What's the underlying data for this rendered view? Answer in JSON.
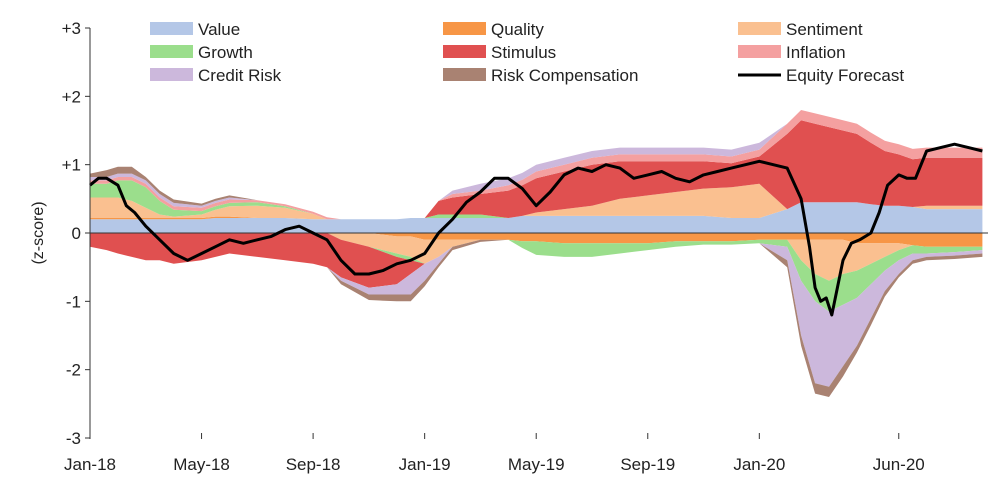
{
  "chart_data": {
    "type": "area",
    "title": "",
    "xlabel": "",
    "ylabel": "(z-score)",
    "ylim": [
      -3,
      3
    ],
    "yticks": [
      3,
      2,
      1,
      0,
      -1,
      -2,
      -3
    ],
    "ytick_labels": [
      "+3",
      "+2",
      "+1",
      "0",
      "-1",
      "-2",
      "-3"
    ],
    "x_tick_labels": [
      "Jan-18",
      "May-18",
      "Sep-18",
      "Jan-19",
      "May-19",
      "Sep-19",
      "Jan-20",
      "Jun-20"
    ],
    "x_tick_months": [
      0,
      4,
      8,
      12,
      16,
      20,
      24,
      29
    ],
    "x_range_months": [
      0,
      32.2
    ],
    "legend_position": "top",
    "x": [
      0,
      0.6,
      1.0,
      1.5,
      2.0,
      2.5,
      3.0,
      4.0,
      4.5,
      5.0,
      6.0,
      7.0,
      8.0,
      8.5,
      9.0,
      10.0,
      11.0,
      11.5,
      12.0,
      12.5,
      13.0,
      14.0,
      15.0,
      15.5,
      16.0,
      17.0,
      18.0,
      19.0,
      20.0,
      21.0,
      22.0,
      23.0,
      24.0,
      25.0,
      25.5,
      26.0,
      26.5,
      27.0,
      27.5,
      28.0,
      28.5,
      29.0,
      29.5,
      30.0,
      31.0,
      32.0
    ],
    "series": [
      {
        "name": "Value",
        "color": "#b4c7e7",
        "values": [
          0.2,
          0.2,
          0.2,
          0.2,
          0.2,
          0.2,
          0.2,
          0.2,
          0.22,
          0.22,
          0.22,
          0.22,
          0.2,
          0.2,
          0.2,
          0.2,
          0.2,
          0.22,
          0.22,
          0.22,
          0.22,
          0.22,
          0.22,
          0.25,
          0.25,
          0.25,
          0.25,
          0.25,
          0.25,
          0.25,
          0.25,
          0.22,
          0.22,
          0.35,
          0.45,
          0.45,
          0.45,
          0.45,
          0.45,
          0.42,
          0.4,
          0.4,
          0.38,
          0.35,
          0.35,
          0.35
        ]
      },
      {
        "name": "Quality",
        "color": "#f79646",
        "values": [
          0.02,
          0.02,
          0.02,
          0.02,
          0.02,
          0.02,
          0.02,
          0.02,
          0.02,
          0.02,
          0.0,
          0.0,
          0.0,
          0.0,
          0.0,
          0.0,
          -0.05,
          -0.05,
          -0.1,
          -0.1,
          -0.1,
          -0.1,
          -0.1,
          -0.12,
          -0.12,
          -0.15,
          -0.15,
          -0.15,
          -0.15,
          -0.12,
          -0.12,
          -0.12,
          -0.1,
          -0.1,
          -0.1,
          -0.1,
          -0.1,
          -0.1,
          -0.15,
          -0.15,
          -0.15,
          -0.15,
          -0.18,
          -0.2,
          -0.2,
          -0.2
        ]
      },
      {
        "name": "Sentiment",
        "color": "#fac090",
        "values": [
          0.3,
          0.3,
          0.3,
          0.25,
          0.15,
          0.05,
          0.02,
          0.05,
          0.1,
          0.15,
          0.18,
          0.15,
          0.08,
          0.0,
          -0.1,
          -0.2,
          -0.25,
          -0.3,
          -0.35,
          -0.25,
          -0.1,
          0.0,
          0.0,
          0.0,
          0.05,
          0.1,
          0.15,
          0.25,
          0.3,
          0.35,
          0.4,
          0.45,
          0.5,
          0.0,
          -0.3,
          -0.5,
          -0.6,
          -0.5,
          -0.4,
          -0.3,
          -0.2,
          -0.1,
          0.0,
          0.05,
          0.05,
          0.05
        ]
      },
      {
        "name": "Growth",
        "color": "#9bde8c",
        "values": [
          0.2,
          0.2,
          0.25,
          0.3,
          0.3,
          0.2,
          0.1,
          0.05,
          0.05,
          0.05,
          0.05,
          0.02,
          0.0,
          0.0,
          0.0,
          0.0,
          -0.05,
          -0.05,
          0.0,
          0.05,
          0.05,
          0.05,
          0.0,
          -0.1,
          -0.2,
          -0.2,
          -0.2,
          -0.15,
          -0.1,
          -0.08,
          -0.05,
          -0.05,
          -0.05,
          -0.1,
          -0.3,
          -0.4,
          -0.45,
          -0.45,
          -0.4,
          -0.3,
          -0.2,
          -0.15,
          -0.12,
          -0.1,
          -0.08,
          -0.05
        ]
      },
      {
        "name": "Stimulus",
        "color": "#e05050",
        "values": [
          -0.2,
          -0.25,
          -0.3,
          -0.35,
          -0.4,
          -0.4,
          -0.45,
          -0.4,
          -0.35,
          -0.3,
          -0.35,
          -0.4,
          -0.45,
          -0.5,
          -0.55,
          -0.6,
          -0.4,
          -0.2,
          0.0,
          0.2,
          0.25,
          0.3,
          0.4,
          0.45,
          0.5,
          0.55,
          0.6,
          0.55,
          0.5,
          0.45,
          0.4,
          0.35,
          0.4,
          1.1,
          1.2,
          1.15,
          1.1,
          1.05,
          1.0,
          0.9,
          0.8,
          0.75,
          0.7,
          0.7,
          0.7,
          0.7
        ]
      },
      {
        "name": "Inflation",
        "color": "#f4a0a0",
        "values": [
          0.05,
          0.05,
          0.05,
          0.05,
          0.05,
          0.05,
          0.05,
          0.05,
          0.05,
          0.05,
          0.03,
          0.03,
          0.03,
          0.03,
          0.0,
          0.0,
          0.0,
          0.0,
          0.0,
          0.0,
          0.05,
          0.05,
          0.08,
          0.08,
          0.1,
          0.1,
          0.1,
          0.1,
          0.1,
          0.1,
          0.1,
          0.1,
          0.1,
          0.15,
          0.15,
          0.15,
          0.15,
          0.15,
          0.15,
          0.15,
          0.15,
          0.15,
          0.15,
          0.15,
          0.15,
          0.15
        ]
      },
      {
        "name": "Credit Risk",
        "color": "#ccb8dc",
        "values": [
          0.05,
          0.05,
          0.05,
          0.05,
          0.05,
          0.05,
          0.05,
          0.03,
          0.03,
          0.03,
          0.0,
          0.0,
          0.0,
          0.0,
          -0.05,
          -0.1,
          -0.15,
          -0.3,
          -0.25,
          -0.1,
          0.05,
          0.1,
          0.1,
          0.1,
          0.1,
          0.1,
          0.1,
          0.1,
          0.1,
          0.1,
          0.1,
          0.1,
          0.1,
          -0.2,
          -0.8,
          -1.2,
          -1.1,
          -0.9,
          -0.7,
          -0.5,
          -0.3,
          -0.2,
          -0.1,
          -0.05,
          -0.05,
          -0.05
        ]
      },
      {
        "name": "Risk Compensation",
        "color": "#a98272",
        "values": [
          0.05,
          0.1,
          0.1,
          0.1,
          0.05,
          0.05,
          0.05,
          0.03,
          0.03,
          0.03,
          0.0,
          0.0,
          0.0,
          0.0,
          -0.05,
          -0.08,
          -0.1,
          -0.1,
          -0.08,
          -0.05,
          -0.05,
          -0.03,
          0.0,
          0.0,
          0.0,
          0.0,
          0.0,
          0.0,
          0.0,
          0.0,
          0.0,
          0.0,
          0.0,
          -0.1,
          -0.15,
          -0.15,
          -0.15,
          -0.15,
          -0.1,
          -0.1,
          -0.08,
          -0.05,
          -0.05,
          -0.05,
          -0.05,
          -0.05
        ]
      }
    ],
    "line": {
      "name": "Equity Forecast",
      "color": "#000000",
      "x": [
        0,
        0.3,
        0.6,
        1.0,
        1.3,
        1.6,
        2.0,
        2.5,
        3.0,
        3.5,
        4.0,
        4.5,
        5.0,
        5.5,
        6.0,
        6.5,
        7.0,
        7.5,
        8.0,
        8.5,
        9.0,
        9.5,
        10.0,
        10.5,
        11.0,
        11.5,
        12.0,
        12.5,
        13.0,
        13.5,
        14.0,
        14.5,
        15.0,
        15.5,
        16.0,
        16.5,
        17.0,
        17.5,
        18.0,
        18.5,
        19.0,
        19.5,
        20.0,
        20.5,
        21.0,
        21.5,
        22.0,
        22.5,
        23.0,
        23.5,
        24.0,
        24.5,
        25.0,
        25.5,
        25.8,
        26.0,
        26.2,
        26.4,
        26.6,
        26.8,
        27.0,
        27.3,
        27.6,
        28.0,
        28.3,
        28.6,
        29.0,
        29.3,
        29.6,
        30.0,
        30.5,
        31.0,
        31.5,
        32.0
      ],
      "values": [
        0.7,
        0.8,
        0.8,
        0.7,
        0.4,
        0.3,
        0.1,
        -0.1,
        -0.3,
        -0.4,
        -0.3,
        -0.2,
        -0.1,
        -0.15,
        -0.1,
        -0.05,
        0.05,
        0.1,
        0.0,
        -0.1,
        -0.4,
        -0.6,
        -0.6,
        -0.55,
        -0.45,
        -0.4,
        -0.3,
        0.0,
        0.2,
        0.45,
        0.6,
        0.8,
        0.8,
        0.65,
        0.4,
        0.6,
        0.85,
        0.95,
        0.9,
        1.0,
        0.95,
        0.8,
        0.85,
        0.9,
        0.8,
        0.75,
        0.85,
        0.9,
        0.95,
        1.0,
        1.05,
        1.0,
        0.95,
        0.5,
        -0.2,
        -0.8,
        -1.0,
        -0.95,
        -1.2,
        -0.8,
        -0.4,
        -0.15,
        -0.1,
        0.0,
        0.3,
        0.7,
        0.85,
        0.8,
        0.8,
        1.2,
        1.25,
        1.3,
        1.25,
        1.2
      ]
    }
  }
}
